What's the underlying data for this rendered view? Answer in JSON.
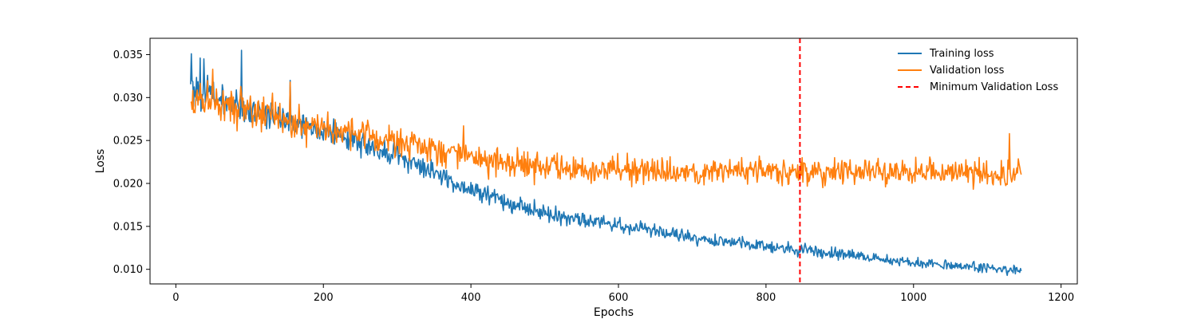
{
  "chart_data": {
    "type": "line",
    "xlabel": "Epochs",
    "ylabel": "Loss",
    "xlim": [
      -35,
      1222
    ],
    "ylim": [
      0.0083,
      0.0369
    ],
    "x_ticks": [
      0,
      200,
      400,
      600,
      800,
      1000,
      1200
    ],
    "y_ticks": [
      0.01,
      0.015,
      0.02,
      0.025,
      0.03,
      0.035
    ],
    "x_range": [
      20,
      1146
    ],
    "grid": false,
    "legend_position": "top-right",
    "series": [
      {
        "name": "Training loss",
        "color": "#1f77b4",
        "trend": [
          [
            20,
            0.0312
          ],
          [
            100,
            0.0285
          ],
          [
            200,
            0.0262
          ],
          [
            300,
            0.0232
          ],
          [
            400,
            0.0193
          ],
          [
            500,
            0.0165
          ],
          [
            600,
            0.0152
          ],
          [
            700,
            0.0137
          ],
          [
            800,
            0.0127
          ],
          [
            900,
            0.0118
          ],
          [
            1000,
            0.0108
          ],
          [
            1146,
            0.0098
          ]
        ],
        "noise": [
          [
            20,
            0.0016
          ],
          [
            400,
            0.0009
          ],
          [
            800,
            0.0006
          ],
          [
            1146,
            0.0005
          ]
        ],
        "peaks": [
          [
            21,
            0.0351
          ],
          [
            33,
            0.0346
          ],
          [
            38,
            0.0345
          ],
          [
            89,
            0.0355
          ],
          [
            155,
            0.032
          ],
          [
            300,
            0.0253
          ]
        ]
      },
      {
        "name": "Validation loss",
        "color": "#ff7f0e",
        "trend": [
          [
            20,
            0.03
          ],
          [
            100,
            0.0285
          ],
          [
            200,
            0.0265
          ],
          [
            300,
            0.025
          ],
          [
            400,
            0.0232
          ],
          [
            500,
            0.022
          ],
          [
            600,
            0.0215
          ],
          [
            700,
            0.0213
          ],
          [
            800,
            0.0213
          ],
          [
            900,
            0.0213
          ],
          [
            1000,
            0.0213
          ],
          [
            1146,
            0.0213
          ]
        ],
        "noise": [
          [
            20,
            0.0018
          ],
          [
            400,
            0.0015
          ],
          [
            800,
            0.0013
          ],
          [
            1146,
            0.0013
          ]
        ],
        "peaks": [
          [
            50,
            0.0333
          ],
          [
            155,
            0.0318
          ],
          [
            390,
            0.0267
          ],
          [
            1130,
            0.0258
          ]
        ]
      }
    ],
    "vline": {
      "name": "Minimum Validation Loss",
      "x": 846,
      "color": "#ff0000",
      "style": "dashed"
    }
  }
}
